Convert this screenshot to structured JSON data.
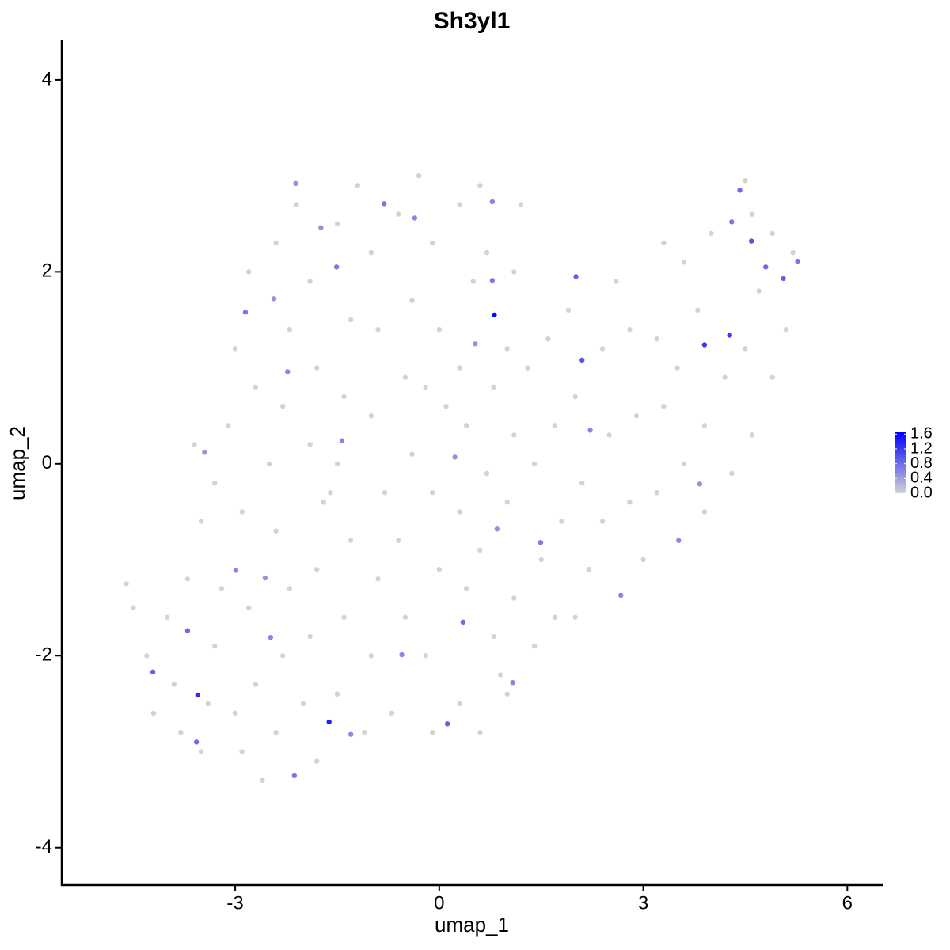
{
  "chart_data": {
    "type": "scatter",
    "title": "Sh3yl1",
    "x_label": "umap_1",
    "y_label": "umap_2",
    "xlim": [
      -5.55,
      6.52
    ],
    "ylim": [
      -4.39,
      4.42
    ],
    "xticks": [
      -3,
      0,
      3,
      6
    ],
    "yticks": [
      -4,
      -2,
      0,
      2,
      4
    ],
    "color_low": "#d3d3d3",
    "color_high": "#0000ff",
    "color_lim": [
      0,
      1.65
    ],
    "color_ticks": [
      {
        "value": 0,
        "label": "0.0"
      },
      {
        "value": 0.4,
        "label": "0.4"
      },
      {
        "value": 0.8,
        "label": "0.8"
      },
      {
        "value": 1.2,
        "label": "1.2"
      },
      {
        "value": 1.6,
        "label": "1.6"
      }
    ],
    "x": [
      -4.6,
      -4.5,
      -4.3,
      -4.0,
      -3.9,
      -3.8,
      -3.5,
      -3.4,
      -3.3,
      -3.2,
      -3.5,
      -3.6,
      -3.3,
      -3.1,
      -3.0,
      -2.8,
      -2.7,
      -2.9,
      -2.8,
      -2.7,
      -2.9,
      -2.6,
      -2.4,
      -2.3,
      -2.2,
      -2.4,
      -2.5,
      -2.3,
      -2.2,
      -2.4,
      -2.1,
      -1.9,
      -1.8,
      -1.9,
      -1.7,
      -1.8,
      -1.9,
      -2.0,
      -1.8,
      -1.5,
      -1.4,
      -1.3,
      -1.5,
      -1.4,
      -1.3,
      -1.5,
      -1.2,
      -1.0,
      -0.9,
      -1.0,
      -0.8,
      -0.9,
      -1.0,
      -1.1,
      -0.7,
      -0.5,
      -0.6,
      -0.4,
      -0.5,
      -0.4,
      -0.6,
      -0.3,
      -0.1,
      0.0,
      0.1,
      -0.1,
      0.0,
      -0.2,
      -0.1,
      0.3,
      0.4,
      0.3,
      0.4,
      0.3,
      0.5,
      0.3,
      0.6,
      0.7,
      0.8,
      0.7,
      0.6,
      0.8,
      0.6,
      1.0,
      1.1,
      1.0,
      1.1,
      1.0,
      1.1,
      1.3,
      1.4,
      1.5,
      1.4,
      1.7,
      1.8,
      1.7,
      1.6,
      1.9,
      2.0,
      2.1,
      2.2,
      2.4,
      2.5,
      2.4,
      2.6,
      2.8,
      2.9,
      2.8,
      3.0,
      3.2,
      3.3,
      3.2,
      3.3,
      3.6,
      3.5,
      3.6,
      3.9,
      3.9,
      3.8,
      4.0,
      4.2,
      4.3,
      4.6,
      4.5,
      4.7,
      4.6,
      4.9,
      4.9,
      5.1,
      5.2,
      4.5,
      -3.7,
      -4.2,
      -3.0,
      -1.6,
      0.9,
      2.0,
      1.2,
      -0.2,
      0.81,
      -1.62,
      -3.55,
      3.9,
      4.27,
      2.1,
      2.01,
      0.12,
      0.35,
      -4.21,
      -3.7,
      -2.85,
      -2.23,
      -1.51,
      -0.81,
      -0.36,
      0.78,
      0.78,
      0.53,
      0.23,
      -1.43,
      -3.45,
      -2.99,
      -2.56,
      -2.48,
      -2.13,
      -3.57,
      -1.3,
      -0.55,
      1.49,
      2.22,
      3.52,
      3.83,
      4.8,
      5.06,
      5.27,
      4.59,
      4.42,
      4.3,
      2.67,
      1.08,
      0.85,
      -2.43,
      -1.74,
      -2.11
    ],
    "y": [
      -1.25,
      -1.5,
      -2.0,
      -1.6,
      -2.3,
      -2.8,
      -3.0,
      -2.5,
      -1.9,
      -1.3,
      -0.6,
      0.2,
      -0.2,
      0.4,
      1.2,
      2.0,
      0.8,
      -0.5,
      -1.5,
      -2.3,
      -3.0,
      -3.3,
      -2.8,
      -2.0,
      -1.3,
      -0.7,
      0.0,
      0.6,
      1.4,
      2.3,
      2.7,
      1.9,
      1.0,
      0.2,
      -0.4,
      -1.1,
      -1.8,
      -2.5,
      -3.1,
      -2.4,
      -1.6,
      -0.8,
      0.0,
      0.7,
      1.5,
      2.5,
      2.9,
      2.2,
      1.4,
      0.5,
      -0.3,
      -1.2,
      -2.0,
      -2.8,
      -2.6,
      -1.6,
      -0.8,
      0.1,
      0.9,
      1.7,
      2.6,
      3.0,
      2.3,
      1.4,
      0.6,
      -0.3,
      -1.1,
      -2.0,
      -2.8,
      -2.5,
      -1.3,
      -0.5,
      0.4,
      1.0,
      1.9,
      2.7,
      2.9,
      2.2,
      0.8,
      -0.1,
      -0.9,
      -1.8,
      -2.8,
      -2.4,
      -1.4,
      -0.4,
      0.3,
      1.2,
      2.0,
      1.0,
      0.0,
      -1.0,
      -1.9,
      -1.6,
      -0.6,
      0.4,
      1.3,
      1.6,
      0.7,
      -0.2,
      -1.1,
      -0.6,
      0.3,
      1.2,
      1.9,
      1.4,
      0.5,
      -0.4,
      -1.0,
      -0.3,
      0.6,
      1.3,
      2.3,
      2.1,
      1.0,
      0.0,
      -0.5,
      0.4,
      1.6,
      2.4,
      0.9,
      -0.1,
      0.3,
      1.2,
      1.8,
      2.6,
      2.4,
      0.9,
      1.4,
      2.2,
      2.95,
      -1.2,
      -2.6,
      -2.6,
      -0.3,
      -2.2,
      -1.6,
      2.7,
      0.8,
      1.55,
      -2.69,
      -2.41,
      1.24,
      1.34,
      1.08,
      1.95,
      -2.71,
      -1.65,
      -2.17,
      -1.74,
      1.58,
      0.96,
      2.05,
      2.71,
      2.56,
      2.73,
      1.91,
      1.25,
      0.07,
      0.24,
      0.12,
      -1.11,
      -1.19,
      -1.81,
      -3.25,
      -2.9,
      -2.82,
      -1.99,
      -0.82,
      0.35,
      -0.8,
      -0.21,
      2.05,
      1.93,
      2.11,
      2.32,
      2.85,
      2.52,
      -1.37,
      -2.28,
      -0.68,
      1.72,
      2.46,
      2.92
    ],
    "values": [
      0,
      0,
      0,
      0,
      0,
      0,
      0,
      0,
      0,
      0,
      0,
      0,
      0,
      0,
      0,
      0,
      0,
      0,
      0,
      0,
      0,
      0,
      0,
      0,
      0,
      0,
      0,
      0,
      0,
      0,
      0,
      0,
      0,
      0,
      0,
      0,
      0,
      0,
      0,
      0,
      0,
      0,
      0,
      0,
      0,
      0,
      0,
      0,
      0,
      0,
      0,
      0,
      0,
      0,
      0,
      0,
      0,
      0,
      0,
      0,
      0,
      0,
      0,
      0,
      0,
      0,
      0,
      0,
      0,
      0,
      0,
      0,
      0,
      0,
      0,
      0,
      0,
      0,
      0,
      0,
      0,
      0,
      0,
      0,
      0,
      0,
      0,
      0,
      0,
      0,
      0,
      0,
      0,
      0,
      0,
      0,
      0,
      0,
      0,
      0,
      0,
      0,
      0,
      0,
      0,
      0,
      0,
      0,
      0,
      0,
      0,
      0,
      0,
      0,
      0,
      0,
      0,
      0,
      0,
      0,
      0,
      0,
      0,
      0,
      0,
      0,
      0,
      0,
      0,
      0,
      0,
      0,
      0,
      0,
      0,
      0,
      0,
      0,
      0,
      1.6,
      1.4,
      1.3,
      1.2,
      1.2,
      1.0,
      0.9,
      0.9,
      0.8,
      0.9,
      0.8,
      0.7,
      0.6,
      0.7,
      0.7,
      0.6,
      0.6,
      0.7,
      0.5,
      0.5,
      0.6,
      0.5,
      0.6,
      0.5,
      0.6,
      0.7,
      0.8,
      0.6,
      0.6,
      0.7,
      0.6,
      0.6,
      0.5,
      0.8,
      0.9,
      0.7,
      1.0,
      0.8,
      0.7,
      0.6,
      0.6,
      0.5,
      0.5,
      0.5,
      0.5
    ]
  }
}
